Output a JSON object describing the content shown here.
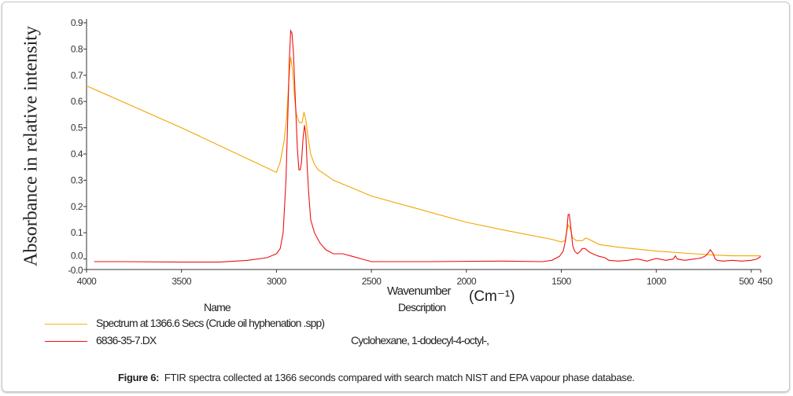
{
  "chart_data": {
    "type": "line",
    "title": "",
    "xlabel": "Wavenumber",
    "xlabel_unit": "(Cm⁻¹)",
    "ylabel": "Absorbance in relative intensity",
    "xlim": [
      4000,
      450
    ],
    "ylim": [
      -0.04,
      0.9
    ],
    "x_ticks": [
      4000,
      3500,
      3000,
      2500,
      2000,
      1500,
      1000,
      500,
      450
    ],
    "x_tick_labels": [
      "4000",
      "3500",
      "3000",
      "2500",
      "2000",
      "1500",
      "1000",
      "500",
      "450"
    ],
    "y_ticks": [
      0.9,
      0.8,
      0.7,
      0.6,
      0.5,
      0.4,
      0.3,
      0.2,
      0.1,
      0.0,
      -0.04
    ],
    "y_tick_labels": [
      "0.9",
      "0.8",
      "0.7",
      "0.6",
      "0.5",
      "0.4",
      "0.3",
      "0.2",
      "0.1",
      "0.0",
      "-0.0"
    ],
    "grid": false,
    "legend_placement": "bottom",
    "series": [
      {
        "name": "Spectrum at 1366.6 Secs (Crude oil hyphenation .spp)",
        "description": "",
        "color": "#f5a300",
        "x": [
          4000,
          3500,
          3000,
          2980,
          2960,
          2945,
          2935,
          2925,
          2915,
          2905,
          2895,
          2880,
          2865,
          2855,
          2845,
          2835,
          2820,
          2800,
          2780,
          2740,
          2700,
          2600,
          2500,
          2300,
          2000,
          1800,
          1550,
          1500,
          1480,
          1465,
          1455,
          1440,
          1420,
          1390,
          1370,
          1340,
          1300,
          1200,
          1000,
          800,
          700,
          600,
          450
        ],
        "y": [
          0.66,
          0.5,
          0.33,
          0.37,
          0.45,
          0.55,
          0.68,
          0.77,
          0.72,
          0.62,
          0.55,
          0.52,
          0.52,
          0.56,
          0.53,
          0.47,
          0.4,
          0.36,
          0.34,
          0.32,
          0.3,
          0.27,
          0.24,
          0.2,
          0.14,
          0.11,
          0.075,
          0.065,
          0.07,
          0.13,
          0.12,
          0.08,
          0.07,
          0.07,
          0.08,
          0.07,
          0.055,
          0.045,
          0.03,
          0.02,
          0.015,
          0.012,
          0.012
        ]
      },
      {
        "name": "6836-35-7.DX",
        "description": "Cyclohexane, 1-dodecyl-4-octyl-,",
        "color": "#ee1111",
        "x": [
          3960,
          3800,
          3500,
          3300,
          3150,
          3050,
          3000,
          2980,
          2965,
          2950,
          2940,
          2932,
          2925,
          2918,
          2910,
          2900,
          2890,
          2882,
          2875,
          2868,
          2860,
          2852,
          2845,
          2838,
          2830,
          2820,
          2800,
          2770,
          2740,
          2700,
          2650,
          2600,
          2550,
          2500,
          2200,
          1800,
          1600,
          1550,
          1510,
          1490,
          1478,
          1470,
          1464,
          1458,
          1450,
          1440,
          1430,
          1415,
          1400,
          1390,
          1375,
          1350,
          1320,
          1300,
          1270,
          1250,
          1200,
          1150,
          1100,
          1050,
          1000,
          950,
          910,
          900,
          890,
          850,
          800,
          780,
          760,
          740,
          725,
          715,
          700,
          690,
          680,
          650,
          600,
          550,
          500,
          470,
          460,
          450
        ],
        "y": [
          -0.01,
          -0.01,
          -0.012,
          -0.012,
          -0.005,
          0.005,
          0.02,
          0.04,
          0.1,
          0.3,
          0.55,
          0.76,
          0.87,
          0.86,
          0.78,
          0.6,
          0.42,
          0.34,
          0.34,
          0.37,
          0.46,
          0.51,
          0.47,
          0.35,
          0.25,
          0.15,
          0.1,
          0.06,
          0.035,
          0.02,
          0.02,
          0.01,
          0.0,
          -0.01,
          -0.01,
          -0.008,
          -0.01,
          -0.005,
          0.01,
          0.03,
          0.07,
          0.12,
          0.17,
          0.17,
          0.12,
          0.05,
          0.03,
          0.02,
          0.03,
          0.04,
          0.04,
          0.025,
          0.015,
          0.01,
          0.005,
          -0.005,
          -0.008,
          -0.005,
          0.0,
          -0.008,
          0.002,
          -0.005,
          0.0,
          0.012,
          0.0,
          -0.005,
          0.0,
          0.002,
          0.005,
          0.012,
          0.025,
          0.035,
          0.02,
          0.0,
          -0.005,
          -0.008,
          -0.005,
          -0.008,
          -0.005,
          0.0,
          0.005,
          0.01
        ]
      }
    ]
  },
  "legend": {
    "name_header": "Name",
    "description_header": "Description"
  },
  "caption": {
    "label": "Figure 6:",
    "text": "FTIR spectra collected at 1366 seconds compared with search match NIST and EPA vapour phase database."
  }
}
